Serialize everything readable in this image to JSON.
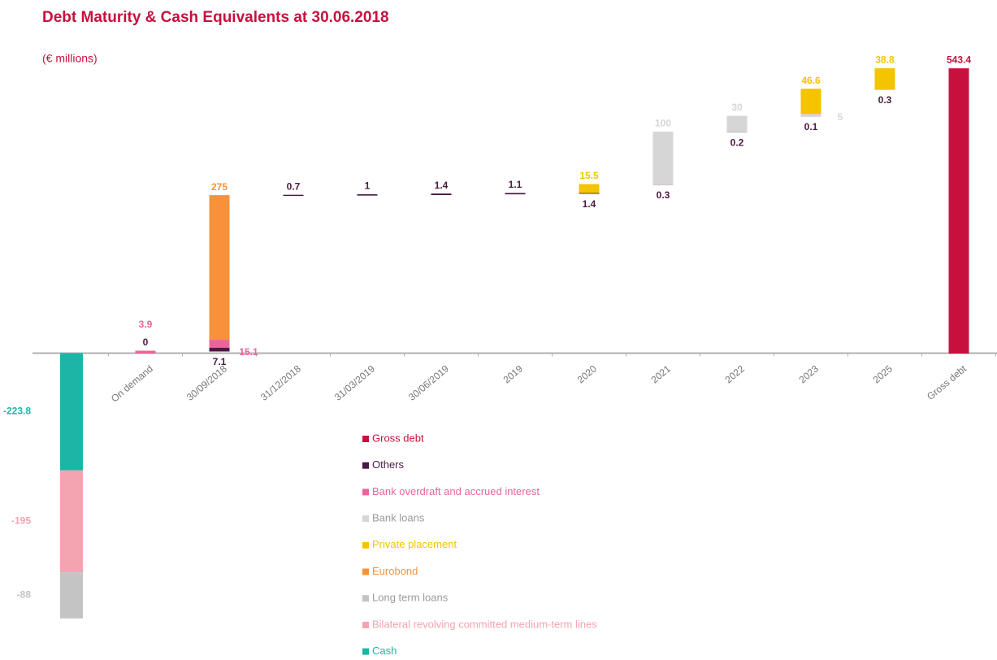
{
  "chart_data": {
    "type": "waterfall",
    "title": "Debt Maturity & Cash Equivalents at 30.06.2018",
    "subtitle": "(€ millions)",
    "categories": [
      null,
      "On demand",
      "30/09/2018",
      "31/12/2018",
      "31/03/2019",
      "30/06/2019",
      "2019",
      "2020",
      "2021",
      "2022",
      "2023",
      "2025",
      "Gross debt"
    ],
    "ylim": [
      -580,
      580
    ],
    "series": [
      {
        "name": "Gross debt",
        "color": "#c8103e",
        "values": [
          null,
          null,
          null,
          null,
          null,
          null,
          null,
          null,
          null,
          null,
          null,
          null,
          543.4
        ]
      },
      {
        "name": "Others",
        "color": "#4a1942",
        "values": [
          null,
          0.0,
          7.1,
          0.7,
          1.0,
          1.4,
          1.1,
          1.4,
          0.3,
          0.2,
          0.1,
          0.3,
          null
        ]
      },
      {
        "name": "Bank overdraft and accrued interest",
        "color": "#e8659a",
        "values": [
          null,
          3.9,
          15.1,
          null,
          null,
          null,
          null,
          null,
          null,
          null,
          null,
          null,
          null
        ]
      },
      {
        "name": "Bank loans",
        "color": "#d6d6d6",
        "values": [
          null,
          null,
          null,
          null,
          null,
          null,
          null,
          null,
          100.0,
          30.0,
          5.0,
          null,
          null
        ]
      },
      {
        "name": "Private placement",
        "color": "#f5c400",
        "values": [
          null,
          null,
          null,
          null,
          null,
          null,
          null,
          15.5,
          null,
          null,
          46.6,
          38.8,
          null
        ]
      },
      {
        "name": "Eurobond",
        "color": "#f7923a",
        "values": [
          null,
          null,
          275.0,
          null,
          null,
          null,
          null,
          null,
          null,
          null,
          null,
          null,
          null
        ]
      },
      {
        "name": "Long term loans",
        "color": "#c4c4c4",
        "values": [
          -88.0,
          null,
          null,
          null,
          null,
          null,
          null,
          null,
          null,
          null,
          null,
          null,
          null
        ]
      },
      {
        "name": "Bilateral revolving committed medium-term lines",
        "color": "#f4a3b0",
        "values": [
          -195.0,
          null,
          null,
          null,
          null,
          null,
          null,
          null,
          null,
          null,
          null,
          null,
          null
        ]
      },
      {
        "name": "Cash",
        "color": "#1cb5a6",
        "values": [
          -223.8,
          null,
          null,
          null,
          null,
          null,
          null,
          null,
          null,
          null,
          null,
          null,
          null
        ]
      }
    ]
  }
}
